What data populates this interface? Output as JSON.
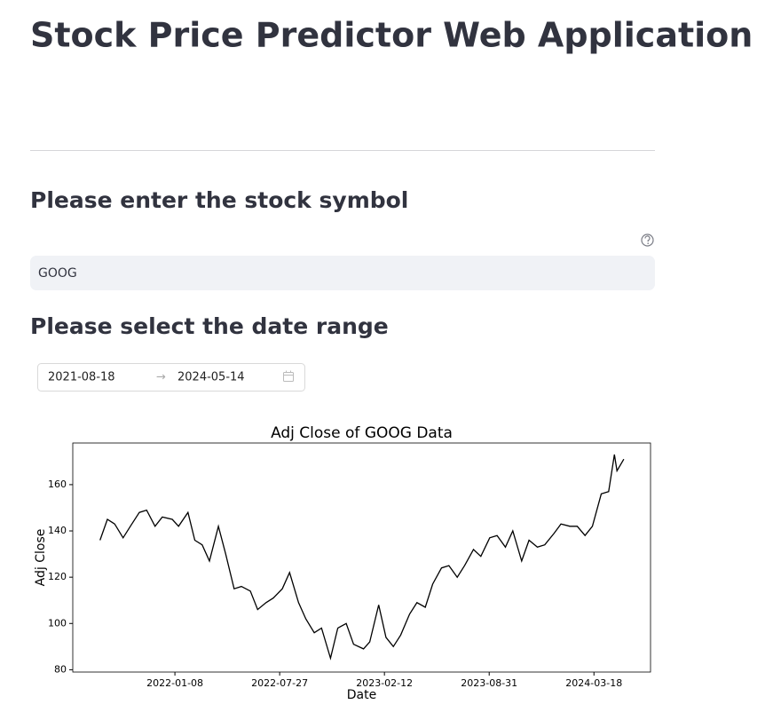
{
  "header": {
    "title": "Stock Price Predictor Web Application"
  },
  "symbol_section": {
    "heading": "Please enter the stock symbol",
    "input_value": "GOOG"
  },
  "date_section": {
    "heading": "Please select the date range",
    "start_date": "2021-08-18",
    "arrow": "→",
    "end_date": "2024-05-14"
  },
  "chart_data": {
    "type": "line",
    "title": "Adj Close of GOOG Data",
    "x_label": "Date",
    "y_label": "Adj Close",
    "color": "#000000",
    "x": [
      "2021-08-18",
      "2021-09-01",
      "2021-09-15",
      "2021-10-01",
      "2021-10-15",
      "2021-11-01",
      "2021-11-15",
      "2021-12-01",
      "2021-12-15",
      "2022-01-03",
      "2022-01-15",
      "2022-02-02",
      "2022-02-15",
      "2022-03-01",
      "2022-03-15",
      "2022-04-01",
      "2022-04-15",
      "2022-05-01",
      "2022-05-15",
      "2022-06-01",
      "2022-06-15",
      "2022-07-01",
      "2022-07-15",
      "2022-08-01",
      "2022-08-15",
      "2022-09-01",
      "2022-09-15",
      "2022-10-01",
      "2022-10-15",
      "2022-11-01",
      "2022-11-15",
      "2022-12-01",
      "2022-12-15",
      "2023-01-03",
      "2023-01-15",
      "2023-02-01",
      "2023-02-15",
      "2023-03-01",
      "2023-03-15",
      "2023-04-01",
      "2023-04-15",
      "2023-05-01",
      "2023-05-15",
      "2023-06-01",
      "2023-06-15",
      "2023-07-01",
      "2023-07-15",
      "2023-08-01",
      "2023-08-15",
      "2023-09-01",
      "2023-09-15",
      "2023-10-01",
      "2023-10-15",
      "2023-11-01",
      "2023-11-15",
      "2023-12-01",
      "2023-12-15",
      "2024-01-02",
      "2024-01-15",
      "2024-02-01",
      "2024-02-15",
      "2024-03-01",
      "2024-03-15",
      "2024-04-01",
      "2024-04-15",
      "2024-04-26",
      "2024-05-01",
      "2024-05-14"
    ],
    "values": [
      136,
      145,
      143,
      137,
      142,
      148,
      149,
      142,
      146,
      145,
      142,
      148,
      136,
      134,
      127,
      142,
      130,
      115,
      116,
      114,
      106,
      109,
      111,
      115,
      122,
      109,
      102,
      96,
      98,
      85,
      98,
      100,
      91,
      89,
      92,
      108,
      94,
      90,
      95,
      104,
      109,
      107,
      117,
      124,
      125,
      120,
      125,
      132,
      129,
      137,
      138,
      133,
      140,
      127,
      136,
      133,
      134,
      139,
      143,
      142,
      142,
      138,
      142,
      156,
      157,
      173,
      166,
      171
    ],
    "xlim": [
      "2021-06-27",
      "2024-07-04"
    ],
    "xticks": [
      "2022-01-08",
      "2022-07-27",
      "2023-02-12",
      "2023-08-31",
      "2024-03-18"
    ],
    "ylim": [
      79,
      178
    ],
    "yticks": [
      80,
      100,
      120,
      140,
      160
    ]
  }
}
